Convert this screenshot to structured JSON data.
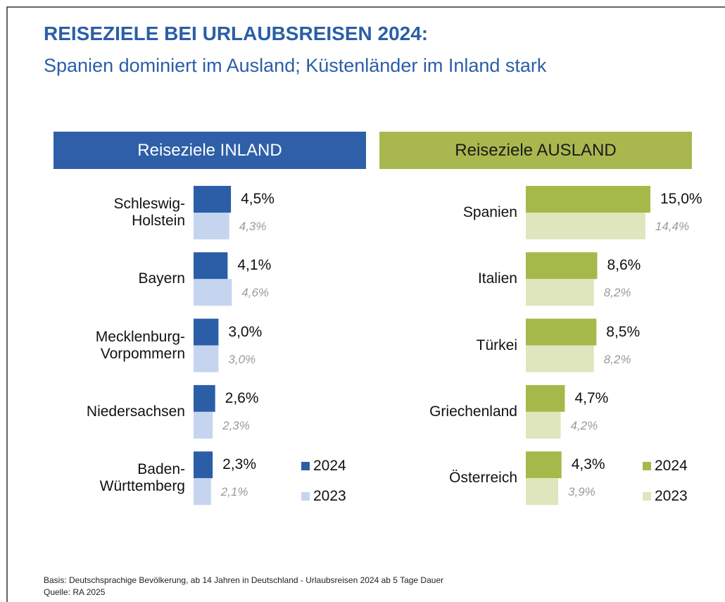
{
  "title": "REISEZIELE BEI URLAUBSREISEN 2024:",
  "subtitle": "Spanien dominiert im Ausland; Küstenländer im Inland stark",
  "footnote": [
    "Basis: Deutschsprachige Bevölkerung, ab 14 Jahren in Deutschland - Urlaubsreisen 2024 ab 5 Tage Dauer",
    "Quelle: RA 2025"
  ],
  "chart_data": [
    {
      "type": "bar",
      "orientation": "horizontal",
      "title": "Reiseziele INLAND",
      "header_color": "#2e5fa8",
      "header_text_color": "#ffffff",
      "categories": [
        "Schleswig-\nHolstein",
        "Bayern",
        "Mecklenburg-\nVorpommern",
        "Niedersachsen",
        "Baden-\nWürttemberg"
      ],
      "series": [
        {
          "name": "2024",
          "color": "#2b5ea7",
          "values": [
            4.5,
            4.1,
            3.0,
            2.6,
            2.3
          ],
          "value_labels": [
            "4,5%",
            "4,1%",
            "3,0%",
            "2,6%",
            "2,3%"
          ]
        },
        {
          "name": "2023",
          "color": "#c5d5ef",
          "values": [
            4.3,
            4.6,
            3.0,
            2.3,
            2.1
          ],
          "value_labels": [
            "4,3%",
            "4,6%",
            "3,0%",
            "2,3%",
            "2,1%"
          ]
        }
      ]
    },
    {
      "type": "bar",
      "orientation": "horizontal",
      "title": "Reiseziele AUSLAND",
      "header_color": "#a9b84e",
      "header_text_color": "#1a1a1a",
      "categories": [
        "Spanien",
        "Italien",
        "Türkei",
        "Griechenland",
        "Österreich"
      ],
      "series": [
        {
          "name": "2024",
          "color": "#a5b94a",
          "values": [
            15.0,
            8.6,
            8.5,
            4.7,
            4.3
          ],
          "value_labels": [
            "15,0%",
            "8,6%",
            "8,5%",
            "4,7%",
            "4,3%"
          ]
        },
        {
          "name": "2023",
          "color": "#dfe6bd",
          "values": [
            14.4,
            8.2,
            8.2,
            4.2,
            3.9
          ],
          "value_labels": [
            "14,4%",
            "8,2%",
            "8,2%",
            "4,2%",
            "3,9%"
          ]
        }
      ]
    }
  ]
}
